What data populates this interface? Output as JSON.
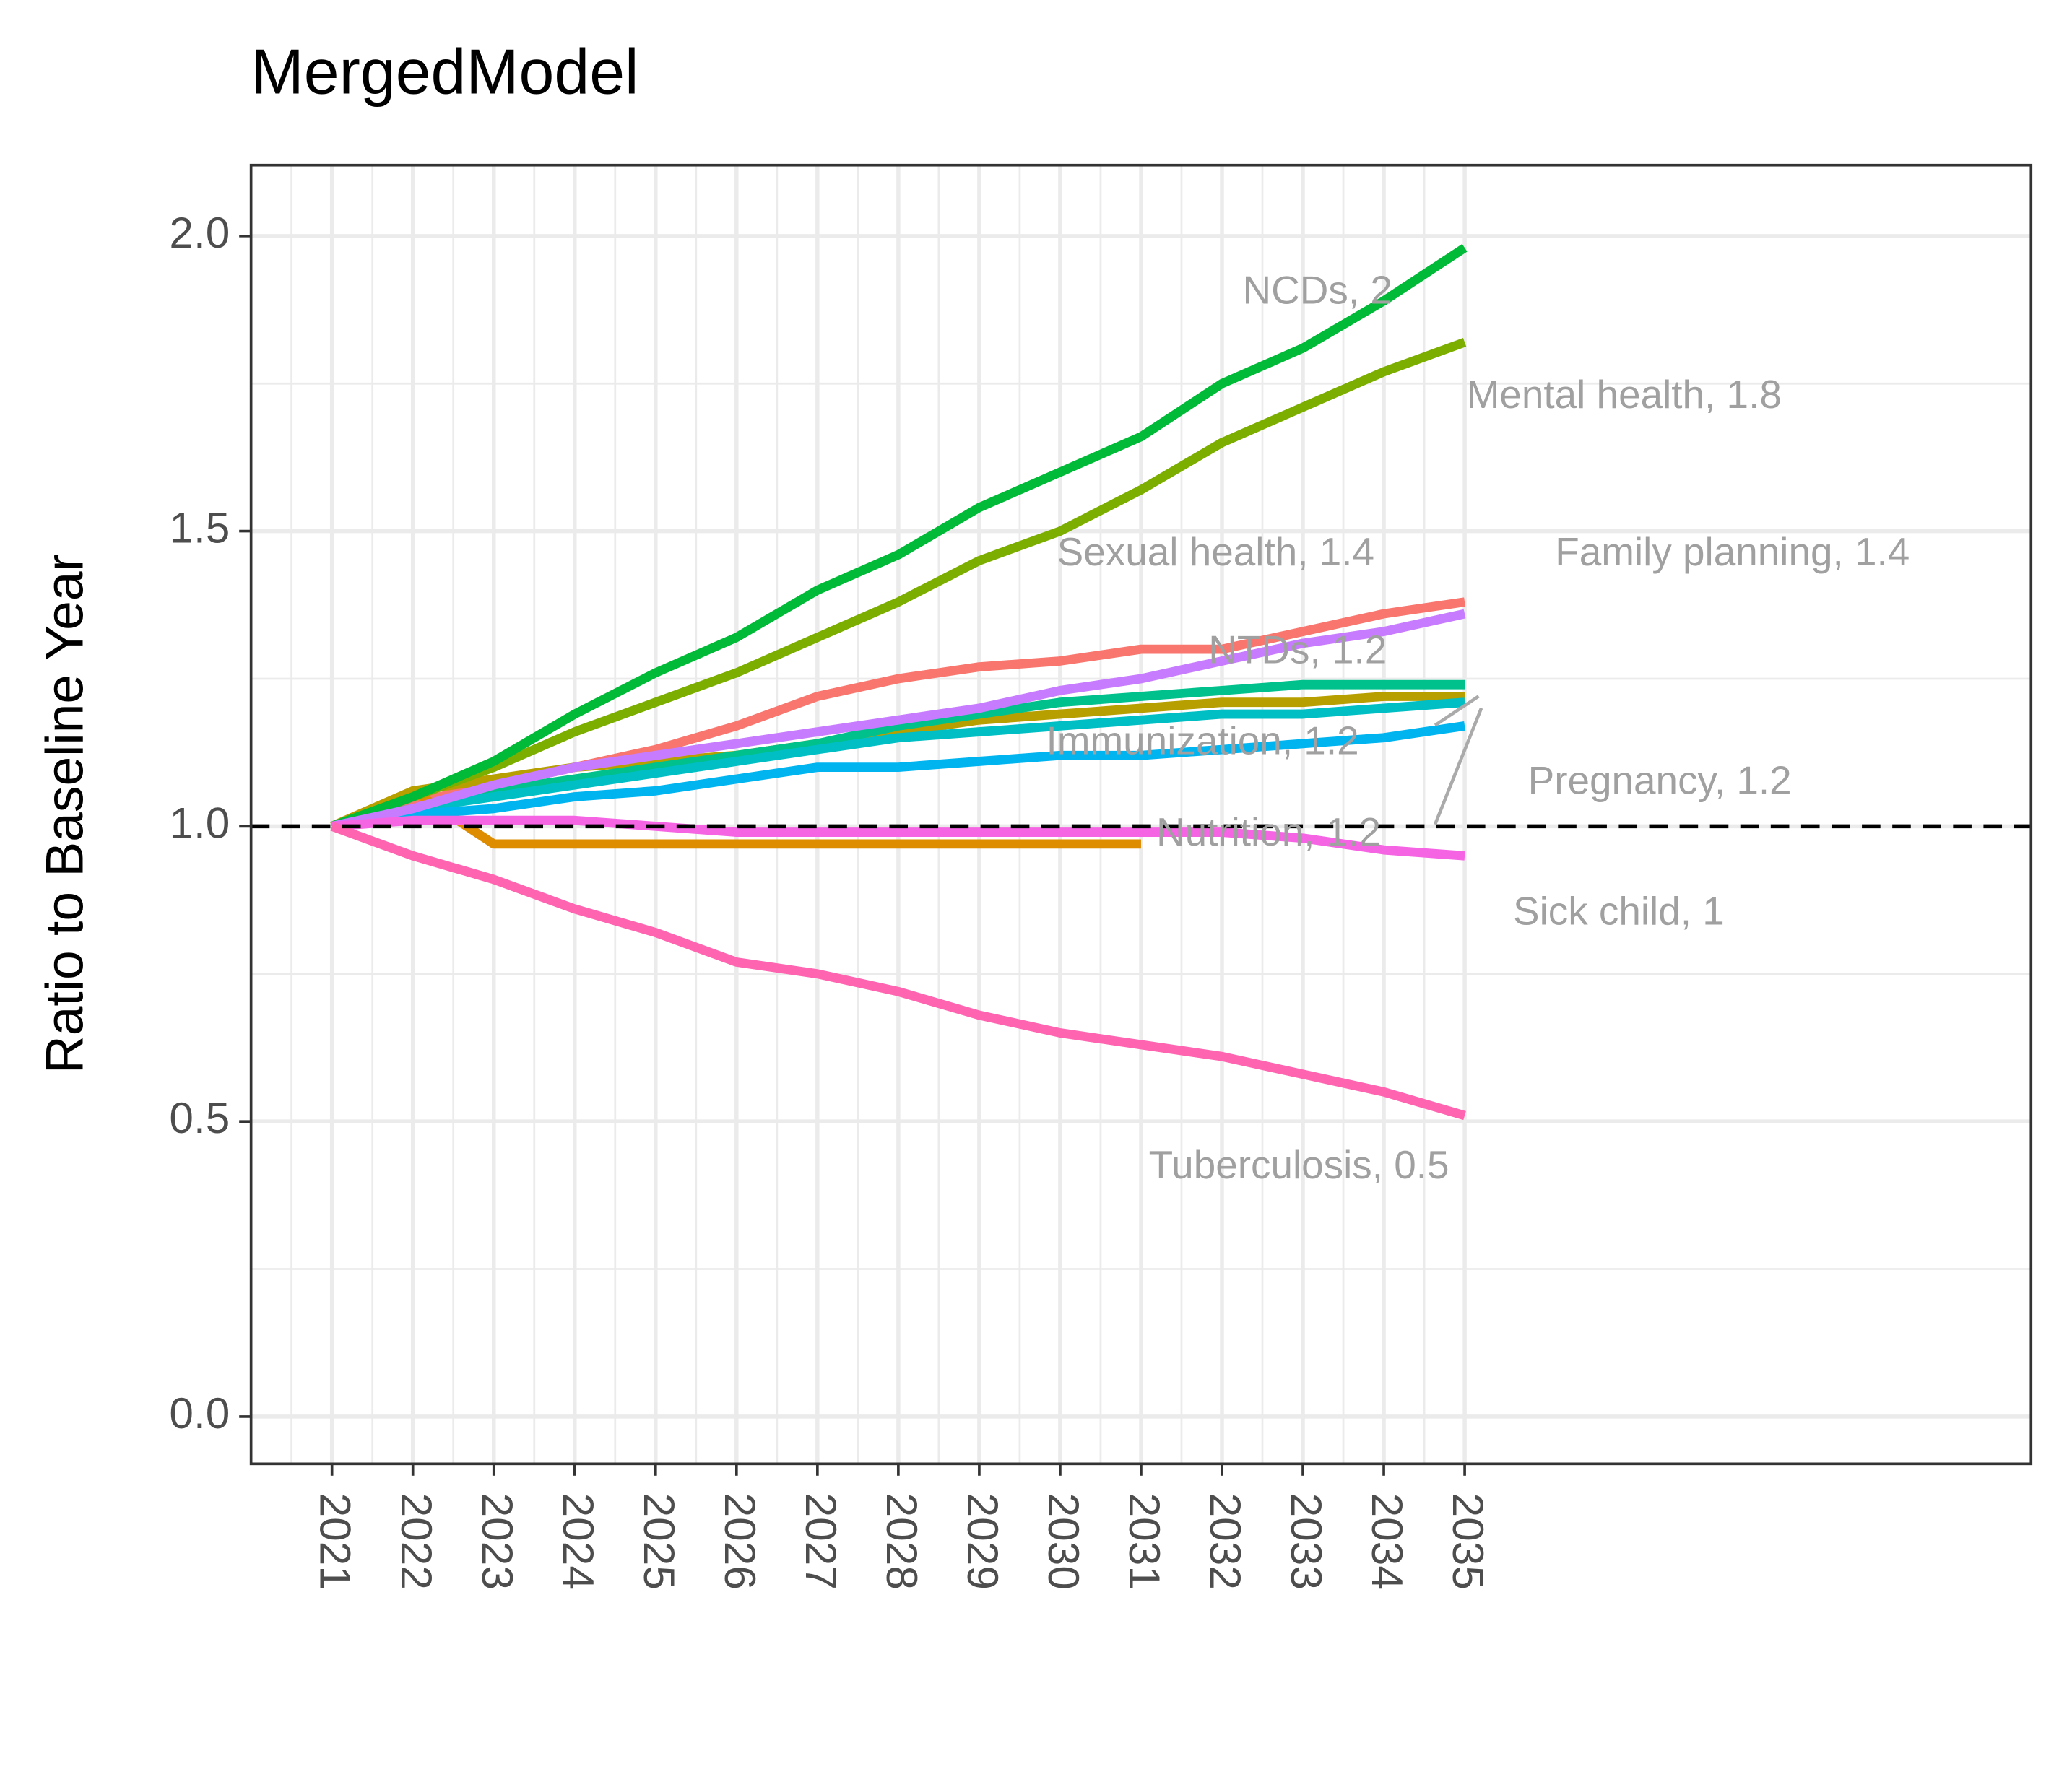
{
  "chart_data": {
    "type": "line",
    "title": "MergedModel",
    "y_label": "Ratio to Baseline Year",
    "x": [
      2021,
      2022,
      2023,
      2024,
      2025,
      2026,
      2027,
      2028,
      2029,
      2030,
      2031,
      2032,
      2033,
      2034,
      2035
    ],
    "xlim": [
      2020,
      2042
    ],
    "xticks": [
      2021,
      2022,
      2023,
      2024,
      2025,
      2026,
      2027,
      2028,
      2029,
      2030,
      2031,
      2032,
      2033,
      2034,
      2035
    ],
    "ylim": [
      -0.08,
      2.12
    ],
    "yticks": [
      {
        "value": 0,
        "label": "0.0"
      },
      {
        "value": 0.5,
        "label": "0.5"
      },
      {
        "value": 1,
        "label": "1.0"
      },
      {
        "value": 1.5,
        "label": "1.5"
      },
      {
        "value": 2,
        "label": "2.0"
      }
    ],
    "grid": true,
    "hline": 1,
    "series": [
      {
        "name": "Family planning",
        "end_label": "Family planning, 1.4",
        "color": "#F8766D",
        "values": [
          1.0,
          1.04,
          1.07,
          1.1,
          1.13,
          1.17,
          1.22,
          1.25,
          1.27,
          1.28,
          1.3,
          1.3,
          1.33,
          1.36,
          1.38
        ]
      },
      {
        "color": "#DE8C00",
        "values": [
          1.0,
          1.06,
          0.97,
          0.97,
          0.97,
          0.97,
          0.97,
          0.97,
          0.97,
          0.97,
          0.97,
          null,
          null,
          null,
          null
        ]
      },
      {
        "name": "Immunization",
        "end_label": "Immunization, 1.2",
        "color": "#B79F00",
        "values": [
          1.0,
          1.06,
          1.08,
          1.1,
          1.11,
          1.12,
          1.14,
          1.16,
          1.18,
          1.19,
          1.2,
          1.21,
          1.21,
          1.22,
          1.22
        ]
      },
      {
        "name": "Mental health",
        "end_label": "Mental health, 1.8",
        "color": "#7CAE00",
        "values": [
          1.0,
          1.05,
          1.1,
          1.16,
          1.21,
          1.26,
          1.32,
          1.38,
          1.45,
          1.5,
          1.57,
          1.65,
          1.71,
          1.77,
          1.82
        ]
      },
      {
        "name": "NCDs",
        "end_label": "NCDs, 2",
        "color": "#00BA38",
        "values": [
          1.0,
          1.05,
          1.11,
          1.19,
          1.26,
          1.32,
          1.4,
          1.46,
          1.54,
          1.6,
          1.66,
          1.75,
          1.81,
          1.89,
          1.98
        ]
      },
      {
        "name": "NTDs",
        "end_label": "NTDs, 1.2",
        "color": "#00C08B",
        "values": [
          1.0,
          1.03,
          1.06,
          1.08,
          1.1,
          1.12,
          1.14,
          1.17,
          1.19,
          1.21,
          1.22,
          1.23,
          1.24,
          1.24,
          1.24
        ]
      },
      {
        "name": "Nutrition",
        "end_label": "Nutrition, 1.2",
        "color": "#00BFC4",
        "values": [
          1.0,
          1.03,
          1.05,
          1.07,
          1.09,
          1.11,
          1.13,
          1.15,
          1.16,
          1.17,
          1.18,
          1.19,
          1.19,
          1.2,
          1.21
        ]
      },
      {
        "name": "Pregnancy",
        "end_label": "Pregnancy, 1.2",
        "color": "#00B4F0",
        "values": [
          1.0,
          1.02,
          1.03,
          1.05,
          1.06,
          1.08,
          1.1,
          1.1,
          1.11,
          1.12,
          1.12,
          1.13,
          1.14,
          1.15,
          1.17
        ]
      },
      {
        "name": "Sexual health",
        "end_label": "Sexual health, 1.4",
        "color": "#C77CFF",
        "values": [
          1.0,
          1.03,
          1.07,
          1.1,
          1.12,
          1.14,
          1.16,
          1.18,
          1.2,
          1.23,
          1.25,
          1.28,
          1.31,
          1.33,
          1.36
        ]
      },
      {
        "name": "Sick child",
        "end_label": "Sick child, 1",
        "color": "#F564E3",
        "values": [
          1.0,
          1.01,
          1.01,
          1.01,
          1.0,
          0.99,
          0.99,
          0.99,
          0.99,
          0.99,
          0.99,
          0.99,
          0.98,
          0.96,
          0.95
        ]
      },
      {
        "name": "Tuberculosis",
        "end_label": "Tuberculosis, 0.5",
        "color": "#FF64B0",
        "values": [
          1.0,
          0.95,
          0.91,
          0.86,
          0.82,
          0.77,
          0.75,
          0.72,
          0.68,
          0.65,
          0.63,
          0.61,
          0.58,
          0.55,
          0.51
        ]
      }
    ]
  }
}
